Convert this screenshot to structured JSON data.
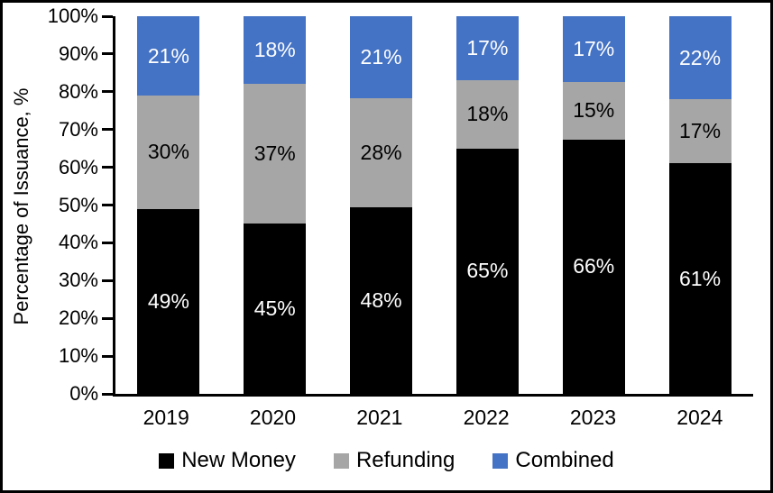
{
  "chart_data": {
    "type": "bar",
    "stacked": true,
    "categories": [
      "2019",
      "2020",
      "2021",
      "2022",
      "2023",
      "2024"
    ],
    "series": [
      {
        "name": "New Money",
        "color": "#000000",
        "label_color": "#FFFFFF",
        "values": [
          49,
          45,
          48,
          65,
          66,
          61
        ]
      },
      {
        "name": "Refunding",
        "color": "#A6A6A6",
        "label_color": "#000000",
        "values": [
          30,
          37,
          28,
          18,
          15,
          17
        ]
      },
      {
        "name": "Combined",
        "color": "#4472C4",
        "label_color": "#FFFFFF",
        "values": [
          21,
          18,
          21,
          17,
          17,
          22
        ]
      }
    ],
    "value_suffix": "%",
    "ylabel": "Percentage of Issuance, %",
    "ylim": [
      0,
      100
    ],
    "ytick_step": 10,
    "ytick_labels": [
      "0%",
      "10%",
      "20%",
      "30%",
      "40%",
      "50%",
      "60%",
      "70%",
      "80%",
      "90%",
      "100%"
    ],
    "grid": false,
    "legend_position": "bottom"
  }
}
